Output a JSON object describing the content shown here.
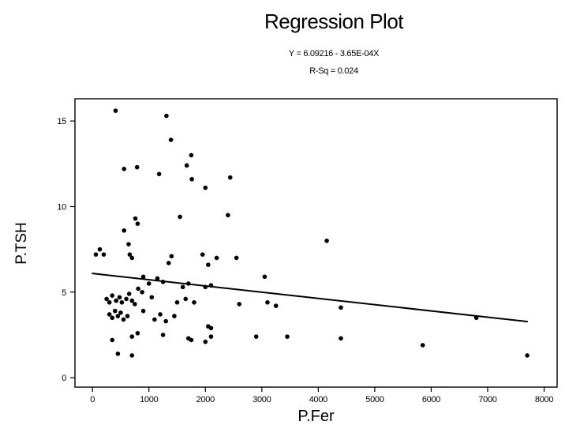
{
  "chart_data": {
    "type": "scatter",
    "title": "Regression Plot",
    "equation": "Y = 6.09216 - 3.65E-04X",
    "r_sq": "R-Sq = 0.024",
    "xlabel": "P.Fer",
    "ylabel": "P.TSH",
    "x_ticks": [
      0,
      1000,
      2000,
      3000,
      4000,
      5000,
      6000,
      7000,
      8000
    ],
    "y_ticks": [
      0,
      5,
      10,
      15
    ],
    "xlim": [
      -310,
      8230
    ],
    "ylim": [
      -0.55,
      16.3
    ],
    "grid": false,
    "marker_color": "#000000",
    "line_color": "#000000",
    "regression": {
      "intercept": 6.09216,
      "slope": -0.000365,
      "x_start": 0,
      "x_end": 7700
    },
    "points": [
      [
        410,
        15.6
      ],
      [
        1310,
        15.3
      ],
      [
        1390,
        13.9
      ],
      [
        1750,
        13.0
      ],
      [
        560,
        12.2
      ],
      [
        790,
        12.3
      ],
      [
        1180,
        11.9
      ],
      [
        1670,
        12.4
      ],
      [
        1760,
        11.6
      ],
      [
        2000,
        11.1
      ],
      [
        2440,
        11.7
      ],
      [
        1550,
        9.4
      ],
      [
        760,
        9.3
      ],
      [
        800,
        9.0
      ],
      [
        560,
        8.6
      ],
      [
        2400,
        9.5
      ],
      [
        4150,
        8.0
      ],
      [
        60,
        7.2
      ],
      [
        130,
        7.5
      ],
      [
        200,
        7.2
      ],
      [
        640,
        7.8
      ],
      [
        660,
        7.2
      ],
      [
        700,
        7.0
      ],
      [
        1400,
        7.1
      ],
      [
        1950,
        7.2
      ],
      [
        2200,
        7.0
      ],
      [
        2550,
        7.0
      ],
      [
        1350,
        6.7
      ],
      [
        2050,
        6.6
      ],
      [
        900,
        5.9
      ],
      [
        1000,
        5.5
      ],
      [
        1150,
        5.8
      ],
      [
        1250,
        5.6
      ],
      [
        1600,
        5.3
      ],
      [
        1700,
        5.5
      ],
      [
        2000,
        5.3
      ],
      [
        2100,
        5.4
      ],
      [
        3050,
        5.9
      ],
      [
        810,
        5.2
      ],
      [
        880,
        5.0
      ],
      [
        250,
        4.6
      ],
      [
        300,
        4.4
      ],
      [
        350,
        4.8
      ],
      [
        420,
        4.5
      ],
      [
        480,
        4.7
      ],
      [
        520,
        4.4
      ],
      [
        600,
        4.6
      ],
      [
        650,
        4.9
      ],
      [
        700,
        4.5
      ],
      [
        750,
        4.3
      ],
      [
        1050,
        4.7
      ],
      [
        1500,
        4.4
      ],
      [
        1650,
        4.6
      ],
      [
        1800,
        4.4
      ],
      [
        2600,
        4.3
      ],
      [
        3100,
        4.4
      ],
      [
        3250,
        4.2
      ],
      [
        4400,
        4.1
      ],
      [
        300,
        3.7
      ],
      [
        350,
        3.5
      ],
      [
        400,
        3.9
      ],
      [
        450,
        3.6
      ],
      [
        500,
        3.8
      ],
      [
        550,
        3.4
      ],
      [
        620,
        3.6
      ],
      [
        900,
        3.9
      ],
      [
        1100,
        3.4
      ],
      [
        1200,
        3.7
      ],
      [
        1300,
        3.3
      ],
      [
        1450,
        3.6
      ],
      [
        2050,
        3.0
      ],
      [
        2100,
        2.9
      ],
      [
        6800,
        3.5
      ],
      [
        350,
        2.2
      ],
      [
        700,
        2.4
      ],
      [
        800,
        2.6
      ],
      [
        1250,
        2.5
      ],
      [
        1700,
        2.3
      ],
      [
        1750,
        2.2
      ],
      [
        2000,
        2.1
      ],
      [
        2100,
        2.4
      ],
      [
        2900,
        2.4
      ],
      [
        3450,
        2.4
      ],
      [
        4400,
        2.3
      ],
      [
        5850,
        1.9
      ],
      [
        450,
        1.4
      ],
      [
        700,
        1.3
      ],
      [
        7700,
        1.3
      ]
    ]
  }
}
